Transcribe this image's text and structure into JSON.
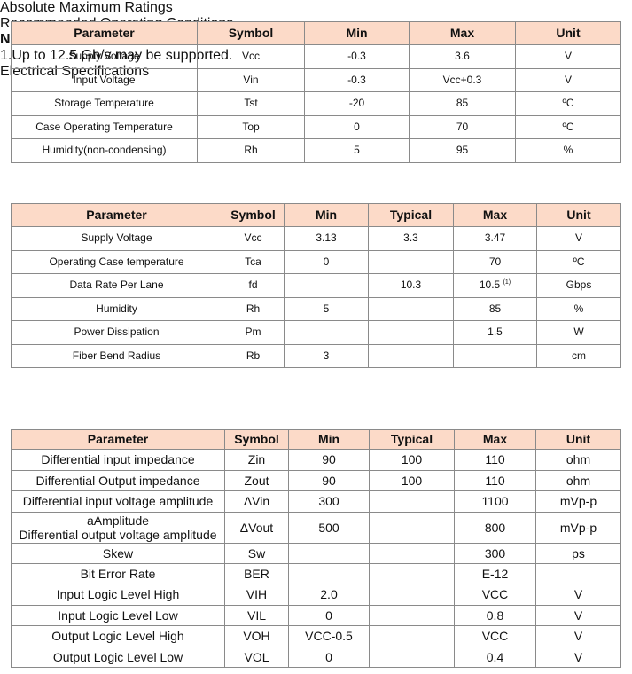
{
  "sections": [
    {
      "title": "Absolute Maximum Ratings",
      "table": {
        "header": [
          "Parameter",
          "Symbol",
          "Min",
          "Max",
          "Unit"
        ],
        "rows": [
          [
            "Supply Voltage",
            "Vcc",
            "-0.3",
            "3.6",
            "V"
          ],
          [
            "Input Voltage",
            "Vin",
            "-0.3",
            "Vcc+0.3",
            "V"
          ],
          [
            "Storage Temperature",
            "Tst",
            "-20",
            "85",
            "ºC"
          ],
          [
            "Case Operating Temperature",
            "Top",
            "0",
            "70",
            "ºC"
          ],
          [
            "Humidity(non-condensing)",
            "Rh",
            "5",
            "95",
            "%"
          ]
        ]
      }
    },
    {
      "title": "Recommended Operating Conditions",
      "table": {
        "header": [
          "Parameter",
          "Symbol",
          "Min",
          "Typical",
          "Max",
          "Unit"
        ],
        "rows": [
          [
            "Supply Voltage",
            "Vcc",
            "3.13",
            "3.3",
            "3.47",
            "V"
          ],
          [
            "Operating Case temperature",
            "Tca",
            "0",
            null,
            "70",
            "ºC"
          ],
          [
            "Data Rate Per Lane",
            "fd",
            null,
            "10.3",
            {
              "text": "10.5",
              "sup": "(1)"
            },
            "Gbps"
          ],
          [
            "Humidity",
            "Rh",
            "5",
            null,
            "85",
            "%"
          ],
          [
            "Power Dissipation",
            "Pm",
            null,
            null,
            "1.5",
            "W"
          ],
          [
            "Fiber Bend Radius",
            "Rb",
            "3",
            null,
            null,
            "cm"
          ]
        ]
      },
      "note": {
        "label": "Note",
        "text": "1.Up to 12.5 Gb/s may be supported."
      }
    },
    {
      "title": "Electrical Specifications",
      "table": {
        "header": [
          "Parameter",
          "Symbol",
          "Min",
          "Typical",
          "Max",
          "Unit"
        ],
        "rows": [
          [
            "Differential input impedance",
            "Zin",
            "90",
            "100",
            "110",
            "ohm"
          ],
          [
            "Differential Output impedance",
            "Zout",
            "90",
            "100",
            "110",
            "ohm"
          ],
          [
            "Differential input voltage amplitude",
            "ΔVin",
            "300",
            null,
            "1100",
            "mVp-p"
          ],
          [
            [
              "aAmplitude",
              "Differential output voltage amplitude"
            ],
            "ΔVout",
            "500",
            null,
            "800",
            "mVp-p"
          ],
          [
            "Skew",
            "Sw",
            null,
            null,
            "300",
            "ps"
          ],
          [
            "Bit Error Rate",
            "BER",
            null,
            null,
            "E-12",
            null
          ],
          [
            "Input Logic Level High",
            "VIH",
            "2.0",
            null,
            "VCC",
            "V"
          ],
          [
            "Input Logic Level Low",
            "VIL",
            "0",
            null,
            "0.8",
            "V"
          ],
          [
            "Output Logic Level High",
            "VOH",
            "VCC-0.5",
            null,
            "VCC",
            "V"
          ],
          [
            "Output Logic Level Low",
            "VOL",
            "0",
            null,
            "0.4",
            "V"
          ]
        ]
      }
    }
  ]
}
